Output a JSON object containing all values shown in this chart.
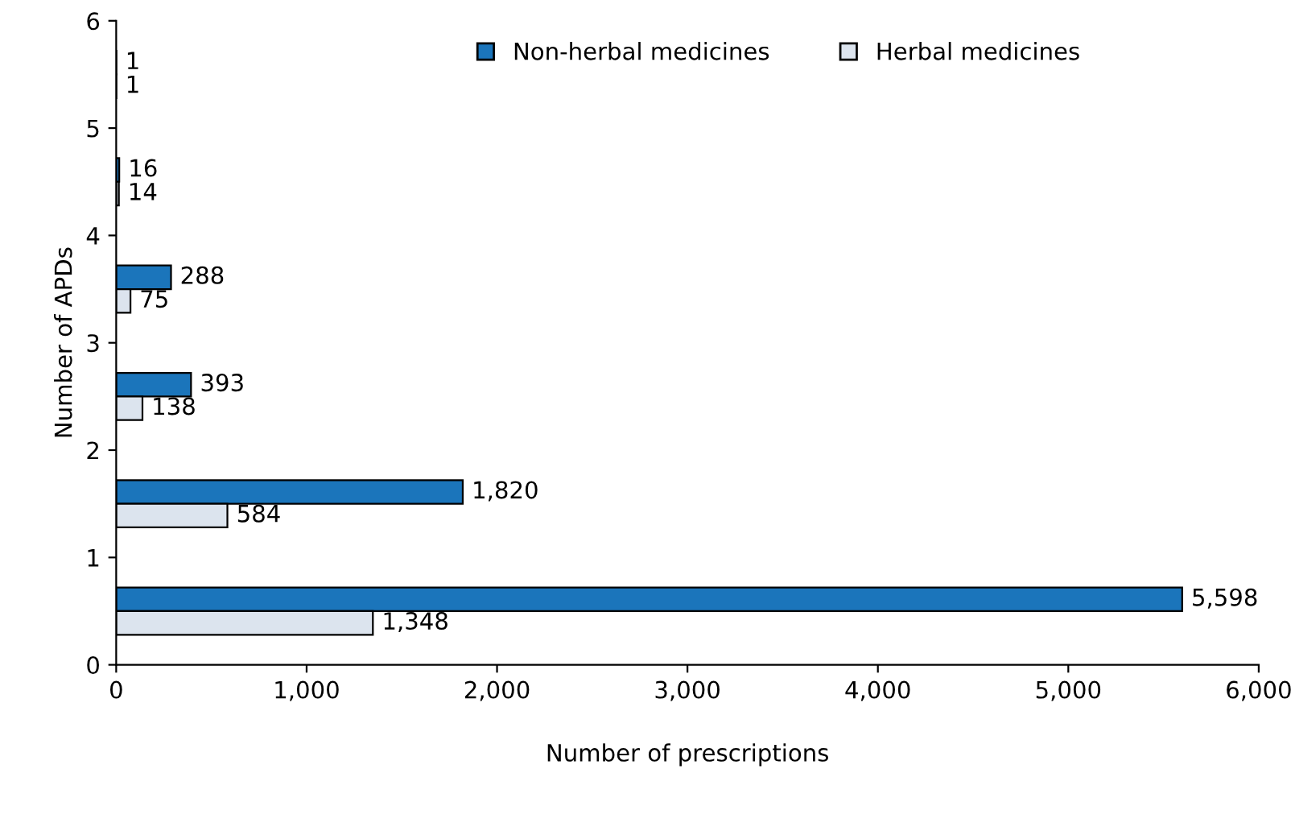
{
  "chart_data": {
    "type": "bar",
    "orientation": "horizontal",
    "xlabel": "Number of prescriptions",
    "ylabel": "Number of APDs",
    "x": [
      5.5,
      4.5,
      3.5,
      2.5,
      1.5,
      0.5
    ],
    "series": [
      {
        "name": "Non-herbal medicines",
        "color": "#1b75bb",
        "values": [
          1,
          16,
          288,
          393,
          1820,
          5598
        ],
        "value_labels": [
          "1",
          "16",
          "288",
          "393",
          "1,820",
          "5,598"
        ]
      },
      {
        "name": "Herbal medicines",
        "color": "#dce4ee",
        "values": [
          1,
          14,
          75,
          138,
          584,
          1348
        ],
        "value_labels": [
          "1",
          "14",
          "75",
          "138",
          "584",
          "1,348"
        ]
      }
    ],
    "xlim": [
      0,
      6000
    ],
    "xticks": [
      0,
      {
        "value": 1000,
        "label": "1,000"
      },
      {
        "value": 2000,
        "label": "2,000"
      },
      {
        "value": 3000,
        "label": "3,000"
      },
      {
        "value": 4000,
        "label": "4,000"
      },
      {
        "value": 5000,
        "label": "5,000"
      },
      {
        "value": 6000,
        "label": "6,000"
      }
    ],
    "ylim": [
      0,
      6
    ],
    "yticks": [
      0,
      1,
      2,
      3,
      4,
      5,
      6
    ],
    "grid": false,
    "legend": "top"
  }
}
